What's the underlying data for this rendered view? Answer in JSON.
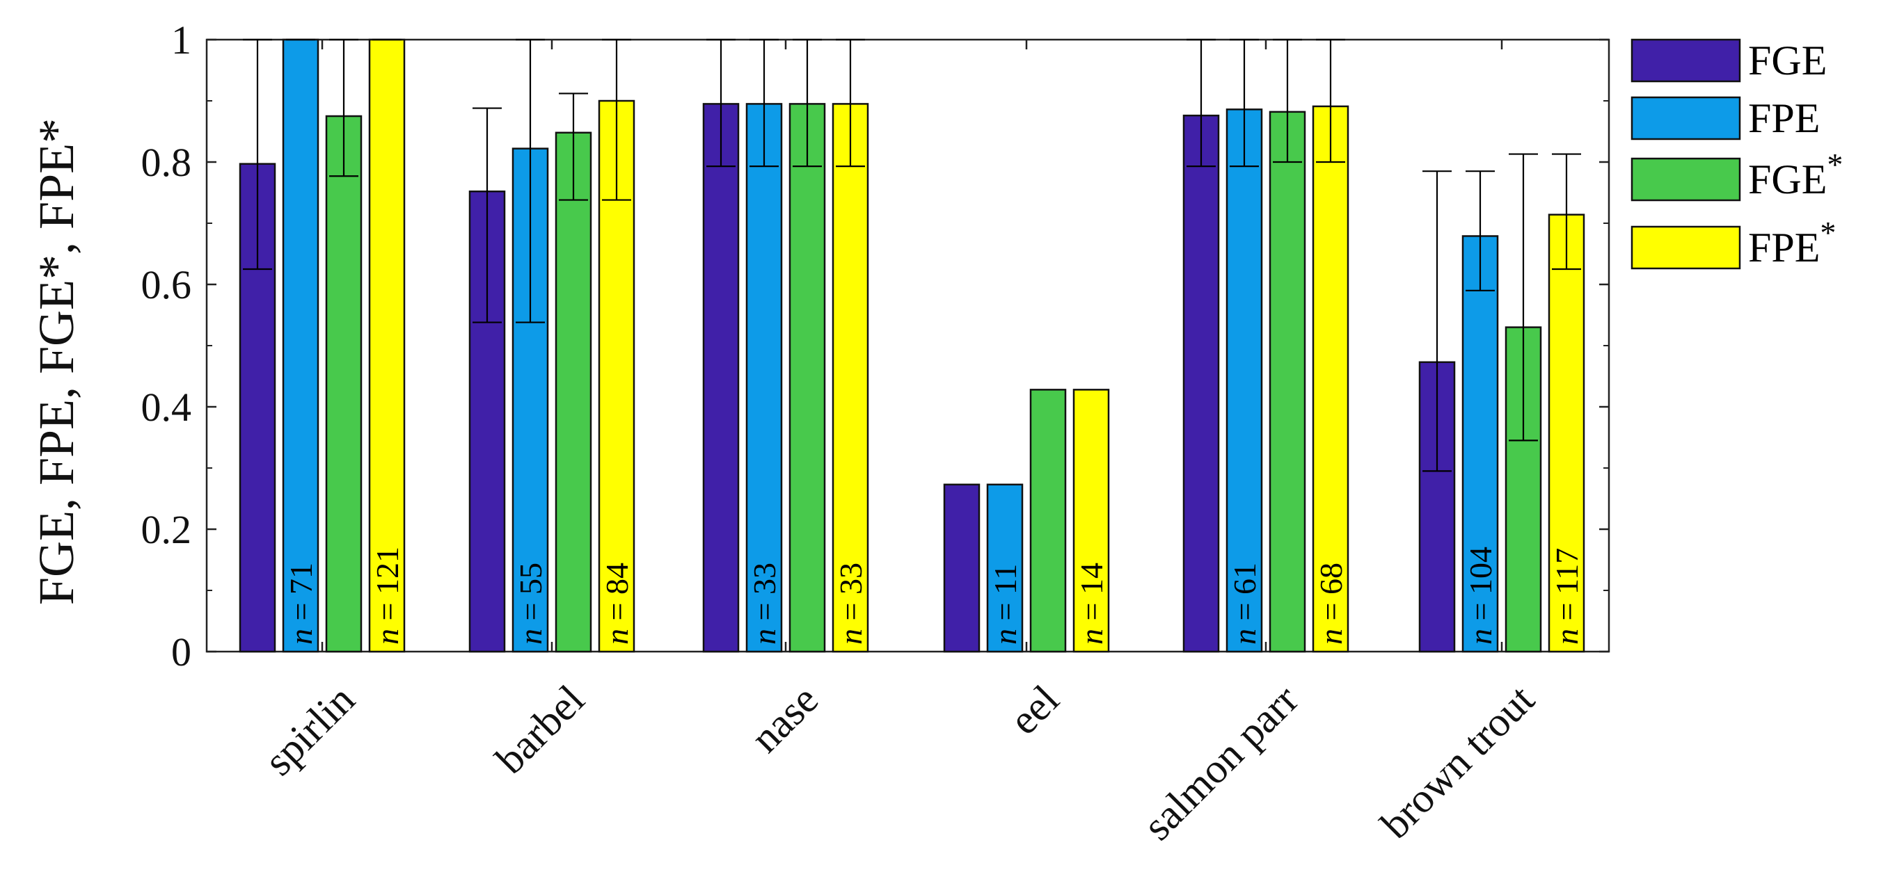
{
  "chart_data": {
    "type": "bar",
    "title": "",
    "xlabel": "",
    "ylabel": "FGE, FPE, FGE*, FPE*",
    "ylim": [
      0,
      1
    ],
    "yticks": [
      "0",
      "0.2",
      "0.4",
      "0.6",
      "0.8",
      "1"
    ],
    "ytick_values": [
      0,
      0.2,
      0.4,
      0.6,
      0.8,
      1
    ],
    "categories": [
      "spirlin",
      "barbel",
      "nase",
      "eel",
      "salmon parr",
      "brown trout"
    ],
    "n_prefix": "n",
    "n_equals": " = ",
    "series": [
      {
        "name": "FGE",
        "color": "#4020A8",
        "values": [
          0.797,
          0.752,
          0.895,
          0.273,
          0.876,
          0.473
        ],
        "err_low": [
          0.625,
          0.538,
          0.793,
          null,
          0.793,
          0.295
        ],
        "err_high": [
          1.0,
          0.888,
          1.0,
          null,
          1.0,
          0.785
        ],
        "n": [
          "",
          "",
          "",
          "",
          "",
          ""
        ]
      },
      {
        "name": "FPE",
        "color": "#0D9BE8",
        "values": [
          1.0,
          0.822,
          0.895,
          0.273,
          0.886,
          0.679
        ],
        "err_low": [
          null,
          0.538,
          0.793,
          null,
          0.793,
          0.59
        ],
        "err_high": [
          1.0,
          1.0,
          1.0,
          null,
          1.0,
          0.785
        ],
        "n": [
          "71",
          "55",
          "33",
          "11",
          "61",
          "104"
        ]
      },
      {
        "name": "FGE*",
        "color": "#48C94C",
        "values": [
          0.875,
          0.848,
          0.895,
          0.428,
          0.882,
          0.53
        ],
        "err_low": [
          0.777,
          0.738,
          0.793,
          null,
          0.8,
          0.345
        ],
        "err_high": [
          1.0,
          0.912,
          1.0,
          null,
          1.0,
          0.813
        ],
        "n": [
          "",
          "",
          "",
          "",
          "",
          ""
        ]
      },
      {
        "name": "FPE*",
        "color": "#FFFF00",
        "values": [
          1.0,
          0.9,
          0.895,
          0.428,
          0.891,
          0.714
        ],
        "err_low": [
          null,
          0.738,
          0.793,
          null,
          0.8,
          0.625
        ],
        "err_high": [
          1.0,
          1.0,
          1.0,
          null,
          1.0,
          0.813
        ],
        "n": [
          "121",
          "84",
          "33",
          "14",
          "68",
          "117"
        ]
      }
    ],
    "legend": {
      "position": "right",
      "entries": [
        "FGE",
        "FPE",
        "FGE",
        "FPE"
      ],
      "superscripts": [
        "",
        "",
        "*",
        "*"
      ]
    }
  }
}
